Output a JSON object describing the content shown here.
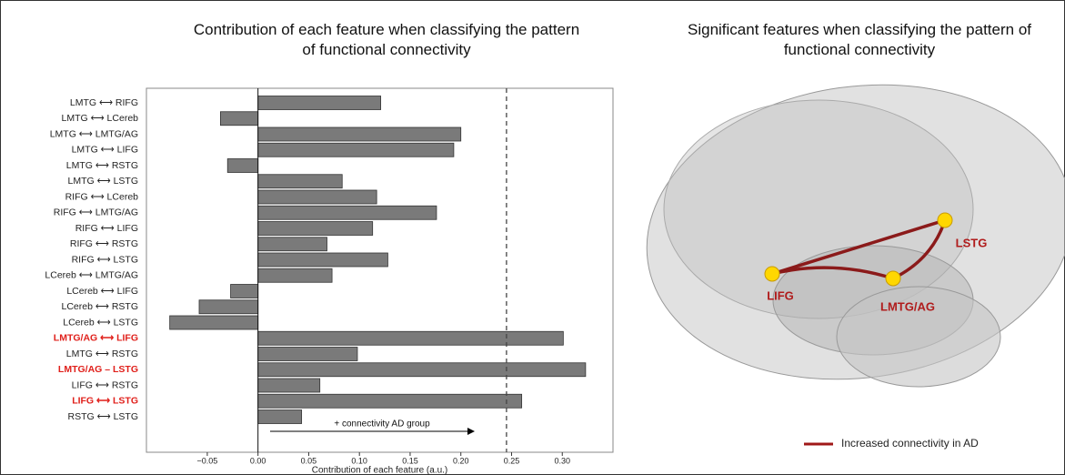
{
  "chart_data": {
    "type": "barh",
    "title": "Contribution of each feature when classifying the pattern of functional connectivity",
    "xlabel": "Contribution of each feature (a.u.)",
    "categories": [
      "LMTG ⟷ RIFG",
      "LMTG ⟷ LCereb",
      "LMTG ⟷ LMTG/AG",
      "LMTG ⟷ LIFG",
      "LMTG ⟷ RSTG",
      "LMTG ⟷ LSTG",
      "RIFG ⟷ LCereb",
      "RIFG ⟷ LMTG/AG",
      "RIFG ⟷ LIFG",
      "RIFG ⟷ RSTG",
      "RIFG ⟷ LSTG",
      "LCereb ⟷ LMTG/AG",
      "LCereb ⟷ LIFG",
      "LCereb ⟷ RSTG",
      "LCereb ⟷ LSTG",
      "LMTG/AG ⟷ LIFG",
      "LMTG ⟷ RSTG",
      "LMTG/AG – LSTG",
      "LIFG ⟷ RSTG",
      "LIFG ⟷ LSTG",
      "RSTG ⟷ LSTG"
    ],
    "values": [
      0.121,
      -0.037,
      0.2,
      0.193,
      -0.03,
      0.083,
      0.117,
      0.176,
      0.113,
      0.068,
      0.128,
      0.073,
      -0.027,
      -0.058,
      -0.087,
      0.301,
      0.098,
      0.323,
      0.061,
      0.26,
      0.043
    ],
    "color": "#7a7a7a",
    "highlighted": [
      15,
      17,
      19
    ],
    "highlight_color": "#e0201b",
    "xlim": [
      -0.11,
      0.35
    ],
    "xticks": [
      {
        "value": -0.05,
        "label": "−0.05"
      },
      {
        "value": 0,
        "label": "0.00"
      },
      0.05,
      {
        "value": 0.1,
        "label": "0.10"
      },
      0.15,
      {
        "value": 0.2,
        "label": "0.20"
      },
      0.25,
      {
        "value": 0.3,
        "label": "0.30"
      }
    ],
    "threshold": 0.245,
    "annotation": "+ connectivity AD group"
  },
  "brain": {
    "title": "Significant features when classifying the pattern of functional connectivity",
    "nodes": [
      "LIFG",
      "LMTG/AG",
      "LSTG"
    ],
    "legend": "Increased connectivity in AD"
  }
}
